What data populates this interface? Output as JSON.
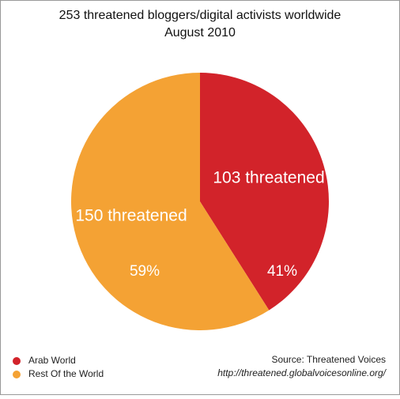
{
  "chart_data": {
    "type": "pie",
    "title": "253 threatened bloggers/digital activists worldwide",
    "subtitle": "August 2010",
    "categories": [
      "Arab World",
      "Rest Of the World"
    ],
    "values": [
      41,
      59
    ],
    "value_labels": [
      "41%",
      "59%"
    ],
    "slice_labels": [
      "103  threatened",
      "150  threatened"
    ],
    "colors": [
      "#d2232a",
      "#f4a234"
    ],
    "legend": "bottom-left",
    "source": "Source: Threatened Voices",
    "source_url": "http://threatened.globalvoicesonline.org/"
  }
}
